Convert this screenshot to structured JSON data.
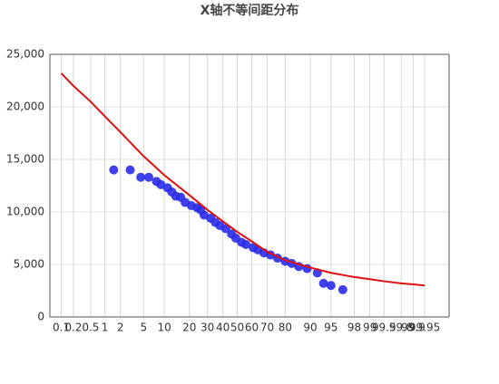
{
  "chart_data": {
    "type": "scatter",
    "title": "X轴不等间距分布",
    "xscale": "normal-probability",
    "xlim": [
      0.05,
      99.99
    ],
    "xticks": [
      0.1,
      0.2,
      0.5,
      1,
      2,
      5,
      10,
      20,
      30,
      40,
      50,
      60,
      70,
      80,
      90,
      95,
      98,
      99,
      99.5,
      99.8,
      99.9,
      99.95
    ],
    "ylim": [
      0,
      25000
    ],
    "yticks": [
      0,
      {
        "value": 5000,
        "label": "5,000"
      },
      {
        "value": 10000,
        "label": "10,000"
      },
      {
        "value": 15000,
        "label": "15,000"
      },
      {
        "value": 20000,
        "label": "20,000"
      },
      {
        "value": 25000,
        "label": "25,000"
      }
    ],
    "grid": true,
    "series": [
      {
        "type": "scatter",
        "color": "#2b2be8",
        "x": [
          1.5,
          3,
          4.5,
          6,
          7.8,
          9,
          11,
          12.5,
          14,
          16,
          18,
          21,
          24,
          26,
          28,
          32,
          35,
          38,
          42,
          46,
          49,
          53,
          56,
          61,
          64,
          68,
          72,
          76,
          80,
          83,
          86,
          89,
          92,
          93.5,
          95,
          96.8
        ],
        "values": [
          14000,
          14000,
          13300,
          13300,
          12900,
          12600,
          12300,
          11900,
          11500,
          11400,
          10900,
          10600,
          10400,
          10200,
          9700,
          9400,
          9000,
          8700,
          8400,
          7900,
          7500,
          7100,
          6900,
          6600,
          6400,
          6100,
          5900,
          5600,
          5300,
          5100,
          4800,
          4600,
          4200,
          3200,
          3000,
          2600
        ]
      },
      {
        "type": "line",
        "color": "#dd1111",
        "x": [
          0.1,
          0.2,
          0.5,
          1,
          2,
          5,
          10,
          20,
          30,
          40,
          50,
          60,
          70,
          80,
          90,
          95,
          98,
          99,
          99.5,
          99.8,
          99.9,
          99.95
        ],
        "values": [
          23200,
          22000,
          20500,
          19100,
          17600,
          15300,
          13500,
          11600,
          10200,
          9100,
          8100,
          7200,
          6200,
          5400,
          4700,
          4200,
          3800,
          3600,
          3400,
          3200,
          3100,
          3000
        ]
      }
    ]
  }
}
